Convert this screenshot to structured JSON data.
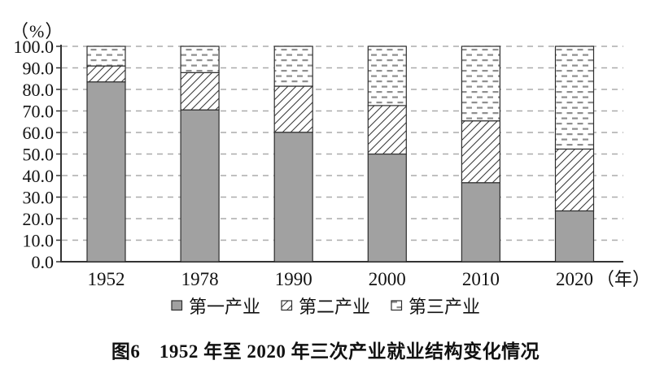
{
  "figure": {
    "y_axis_unit": "（%）",
    "x_axis_unit": "（年）",
    "caption": "图6　1952 年至 2020 年三次产业就业结构变化情况"
  },
  "chart_data": {
    "type": "bar",
    "stacked": true,
    "title": "图6　1952 年至 2020 年三次产业就业结构变化情况",
    "categories": [
      "1952",
      "1978",
      "1990",
      "2000",
      "2010",
      "2020"
    ],
    "series": [
      {
        "name": "第一产业",
        "style": "solid-gray",
        "values": [
          83.5,
          70.5,
          60.1,
          50.0,
          36.7,
          23.6
        ]
      },
      {
        "name": "第二产业",
        "style": "diagonal-hatch",
        "values": [
          7.4,
          17.3,
          21.4,
          22.5,
          28.7,
          28.7
        ]
      },
      {
        "name": "第三产业",
        "style": "dashed-dots",
        "values": [
          9.1,
          12.2,
          18.5,
          27.5,
          34.6,
          47.7
        ]
      }
    ],
    "xlabel": "（年）",
    "ylabel": "（%）",
    "ylim": [
      0,
      100
    ],
    "ytick_step": 10,
    "yticks": [
      "100.0",
      "90.0",
      "80.0",
      "70.0",
      "60.0",
      "50.0",
      "40.0",
      "30.0",
      "20.0",
      "10.0",
      "0.0"
    ],
    "grid": "horizontal-dashed",
    "legend_position": "bottom"
  },
  "colors": {
    "bar_gray": "#a1a1a1",
    "bar_border": "#2e2e2e",
    "gridline": "#ababab",
    "axis": "#333333",
    "hatch_line": "#3d3d3d",
    "dash_fill": "#8f8f8f",
    "text": "#111111"
  }
}
